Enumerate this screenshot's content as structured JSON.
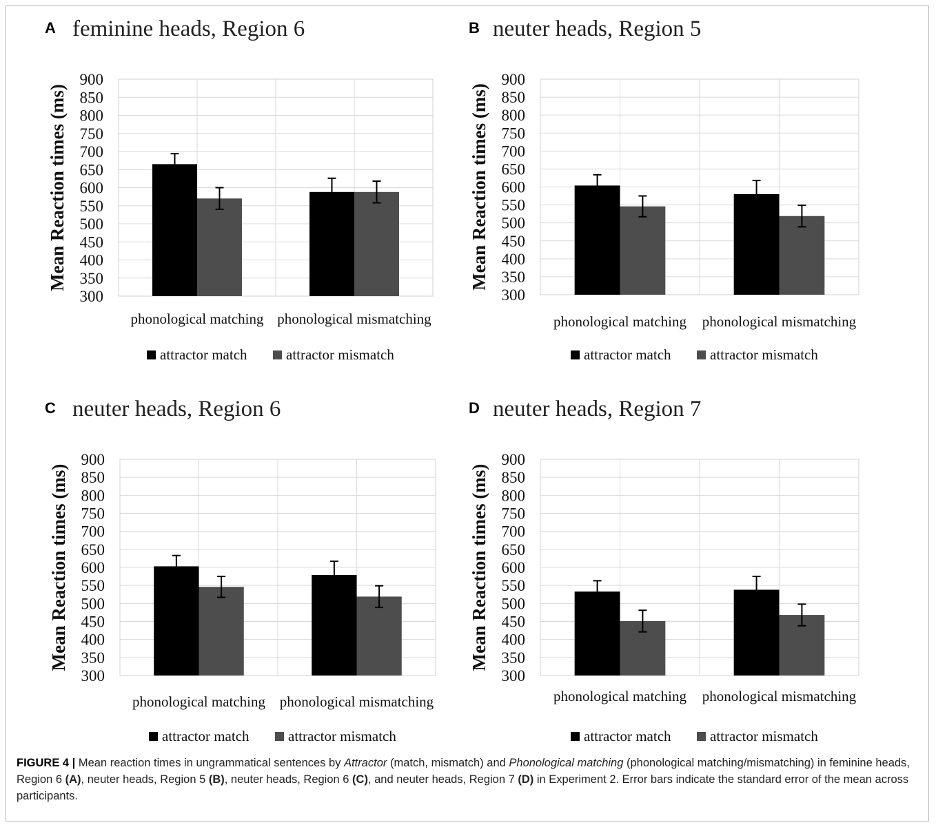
{
  "colors": {
    "attractor_match": "#000000",
    "attractor_mismatch": "#4d4d4d"
  },
  "chart_data": [
    {
      "type": "bar",
      "panel": "A",
      "title": "feminine heads, Region 6",
      "ylabel": "Mean Reaction times (ms)",
      "ylim": [
        300,
        900
      ],
      "yticks": [
        300,
        350,
        400,
        450,
        500,
        550,
        600,
        650,
        700,
        750,
        800,
        850,
        900
      ],
      "categories": [
        "phonological matching",
        "phonological mismatching"
      ],
      "legend_position": "bottom",
      "series": [
        {
          "name": "attractor match",
          "values": [
            665,
            588
          ],
          "errors": [
            29,
            38
          ]
        },
        {
          "name": "attractor mismatch",
          "values": [
            570,
            588
          ],
          "errors": [
            30,
            30
          ]
        }
      ]
    },
    {
      "type": "bar",
      "panel": "B",
      "title": "neuter heads, Region 5",
      "ylabel": "Mean Reaction times (ms)",
      "ylim": [
        300,
        900
      ],
      "yticks": [
        300,
        350,
        400,
        450,
        500,
        550,
        600,
        650,
        700,
        750,
        800,
        850,
        900
      ],
      "categories": [
        "phonological matching",
        "phonological mismatching"
      ],
      "legend_position": "bottom",
      "series": [
        {
          "name": "attractor match",
          "values": [
            604,
            580
          ],
          "errors": [
            30,
            38
          ]
        },
        {
          "name": "attractor mismatch",
          "values": [
            546,
            519
          ],
          "errors": [
            29,
            30
          ]
        }
      ]
    },
    {
      "type": "bar",
      "panel": "C",
      "title": "neuter heads, Region 6",
      "ylabel": "Mean Reaction times (ms)",
      "ylim": [
        300,
        900
      ],
      "yticks": [
        300,
        350,
        400,
        450,
        500,
        550,
        600,
        650,
        700,
        750,
        800,
        850,
        900
      ],
      "categories": [
        "phonological matching",
        "phonological mismatching"
      ],
      "legend_position": "bottom",
      "series": [
        {
          "name": "attractor match",
          "values": [
            603,
            579
          ],
          "errors": [
            30,
            38
          ]
        },
        {
          "name": "attractor mismatch",
          "values": [
            546,
            519
          ],
          "errors": [
            29,
            30
          ]
        }
      ]
    },
    {
      "type": "bar",
      "panel": "D",
      "title": "neuter heads, Region 7",
      "ylabel": "Mean Reaction times (ms)",
      "ylim": [
        300,
        900
      ],
      "yticks": [
        300,
        350,
        400,
        450,
        500,
        550,
        600,
        650,
        700,
        750,
        800,
        850,
        900
      ],
      "categories": [
        "phonological matching",
        "phonological mismatching"
      ],
      "legend_position": "bottom",
      "series": [
        {
          "name": "attractor match",
          "values": [
            533,
            538
          ],
          "errors": [
            30,
            37
          ]
        },
        {
          "name": "attractor mismatch",
          "values": [
            451,
            468
          ],
          "errors": [
            30,
            30
          ]
        }
      ]
    }
  ],
  "caption": {
    "label": "FIGURE 4 |",
    "p1": " Mean reaction times in ungrammatical sentences by ",
    "i1": "Attractor",
    "p2": " (match, mismatch) and ",
    "i2": "Phonological matching",
    "p3": " (phonological matching/mismatching) in feminine heads, Region 6 ",
    "b1": "(A)",
    "p4": ", neuter heads, Region 5 ",
    "b2": "(B)",
    "p5": ", neuter heads, Region 6 ",
    "b3": "(C)",
    "p6": ", and neuter heads, Region 7 ",
    "b4": "(D)",
    "p7": " in Experiment 2. Error bars indicate the standard error of the mean across participants."
  }
}
